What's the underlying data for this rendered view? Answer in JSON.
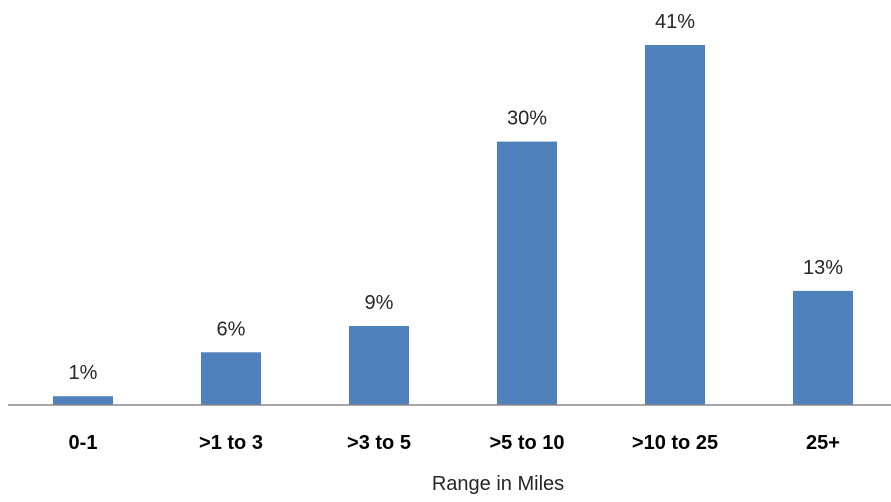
{
  "chart_data": {
    "type": "bar",
    "categories": [
      "0-1",
      ">1 to 3",
      ">3 to 5",
      ">5 to 10",
      ">10 to 25",
      "25+"
    ],
    "values": [
      1,
      6,
      9,
      30,
      41,
      13
    ],
    "data_labels": [
      "1%",
      "6%",
      "9%",
      "30%",
      "41%",
      "13%"
    ],
    "title": "",
    "xlabel": "Range in Miles",
    "ylabel": "",
    "ylim": [
      0,
      41
    ],
    "grid": false,
    "legend": "none",
    "bar_color": "#4f81bd"
  }
}
